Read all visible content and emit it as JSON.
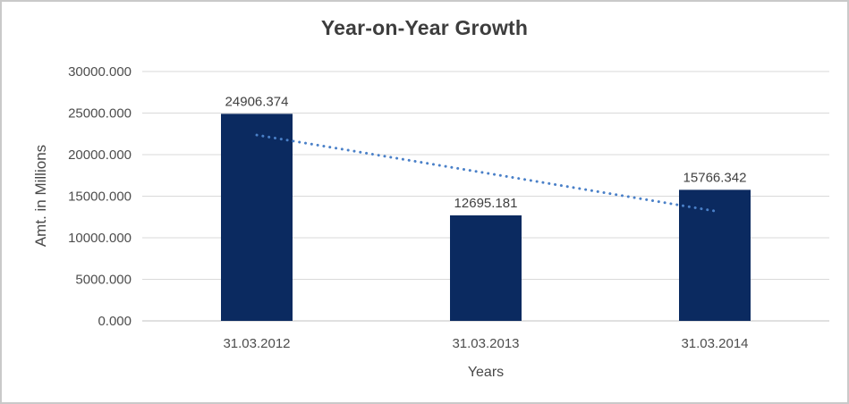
{
  "chart": {
    "title": "Year-on-Year Growth",
    "y_axis_title": "Amt. in Millions",
    "x_axis_title": "Years"
  },
  "chart_data": {
    "type": "bar",
    "title": "Year-on-Year Growth",
    "xlabel": "Years",
    "ylabel": "Amt. in Millions",
    "categories": [
      "31.03.2012",
      "31.03.2013",
      "31.03.2014"
    ],
    "values": [
      24906.374,
      12695.181,
      15766.342
    ],
    "data_labels": [
      "24906.374",
      "12695.181",
      "15766.342"
    ],
    "ylim": [
      0,
      30000
    ],
    "y_tick_step": 5000,
    "y_tick_labels": [
      "30000.000",
      "25000.000",
      "20000.000",
      "15000.000",
      "10000.000",
      "5000.000",
      "0.000"
    ],
    "grid": true,
    "legend": false,
    "trendline": {
      "type": "linear",
      "style": "dotted",
      "color": "#4a80c8"
    },
    "colors": {
      "bar": "#0b2a60",
      "gridline": "#d9d9d9",
      "axis_line": "#c2c2c2",
      "title_text": "#3d3d3d",
      "data_label_text": "#404040",
      "tick_text": "#4d4d4d"
    }
  }
}
